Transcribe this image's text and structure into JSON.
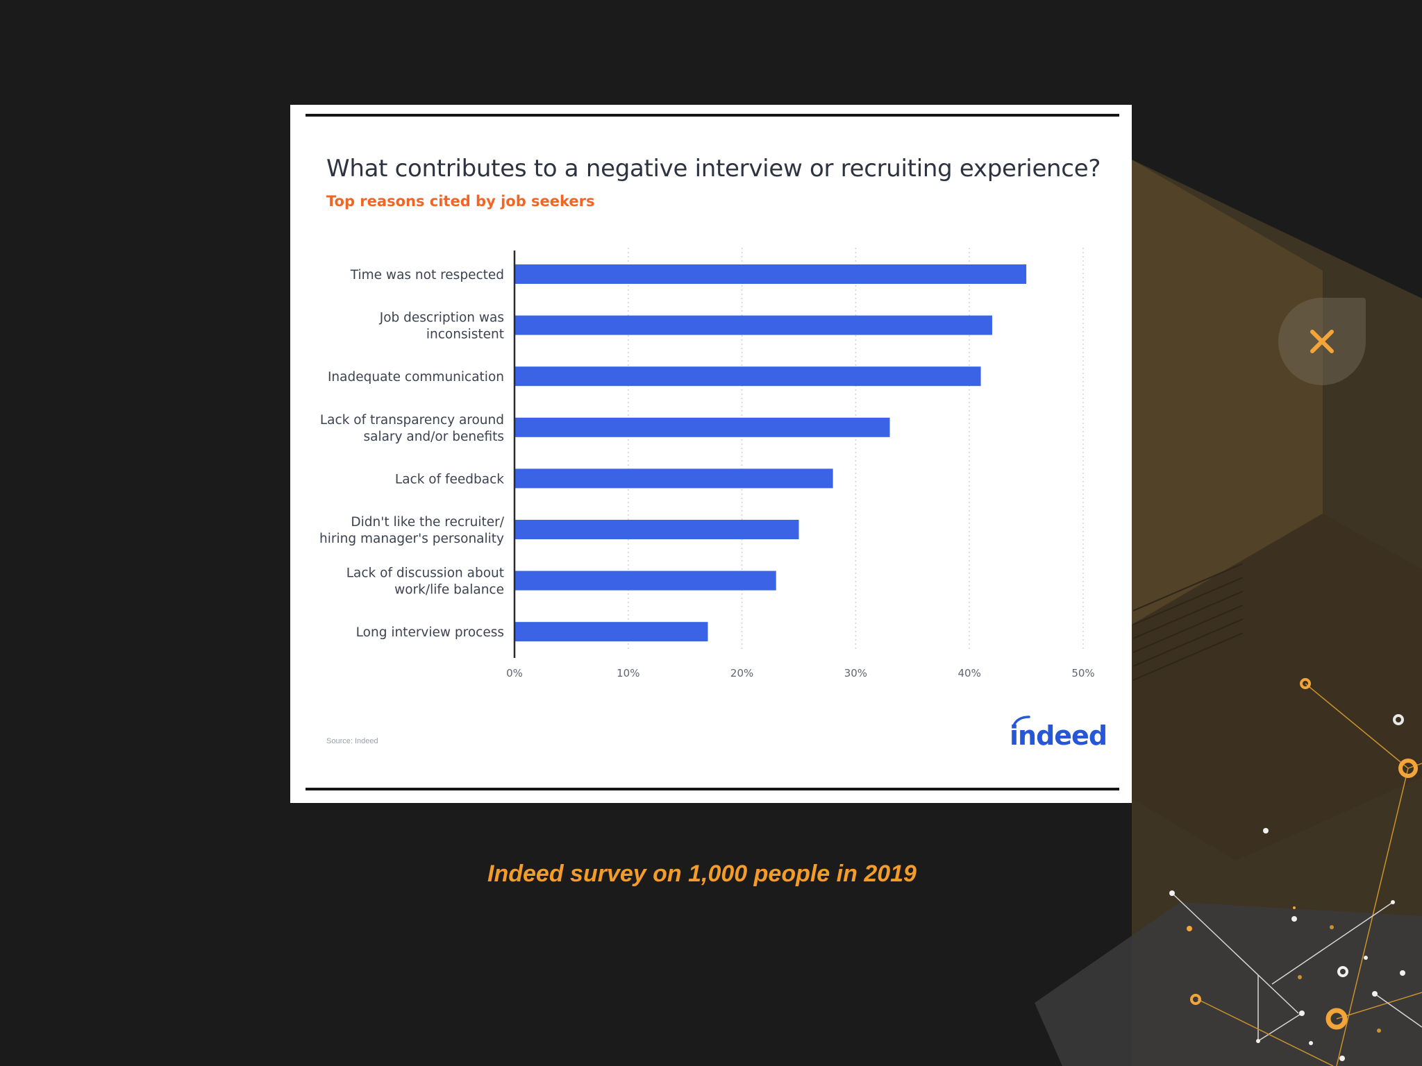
{
  "colors": {
    "background": "#1b1b1c",
    "accent": "#f39c2a",
    "bar": "#3a63e6",
    "subtitle": "#f26522",
    "title": "#2d3340"
  },
  "icons": {
    "close": "close-x-icon"
  },
  "card": {
    "source": "Source: Indeed",
    "logo_text": "indeed"
  },
  "caption": "Indeed survey on 1,000 people in 2019",
  "chart_data": {
    "type": "bar",
    "orientation": "horizontal",
    "title": "What contributes to a negative interview or recruiting experience?",
    "subtitle": "Top reasons cited by job seekers",
    "categories": [
      [
        "Time was not respected"
      ],
      [
        "Job description was",
        "inconsistent"
      ],
      [
        "Inadequate communication"
      ],
      [
        "Lack of transparency around",
        "salary and/or benefits"
      ],
      [
        "Lack of feedback"
      ],
      [
        "Didn't like the recruiter/",
        "hiring manager's personality"
      ],
      [
        "Lack of discussion about",
        "work/life balance"
      ],
      [
        "Long interview process"
      ]
    ],
    "values": [
      45,
      42,
      41,
      33,
      28,
      25,
      23,
      17
    ],
    "xlim": [
      0,
      50
    ],
    "xticks": [
      0,
      10,
      20,
      30,
      40,
      50
    ],
    "tick_suffix": "%",
    "grid": "vertical dotted",
    "legend": "none"
  }
}
